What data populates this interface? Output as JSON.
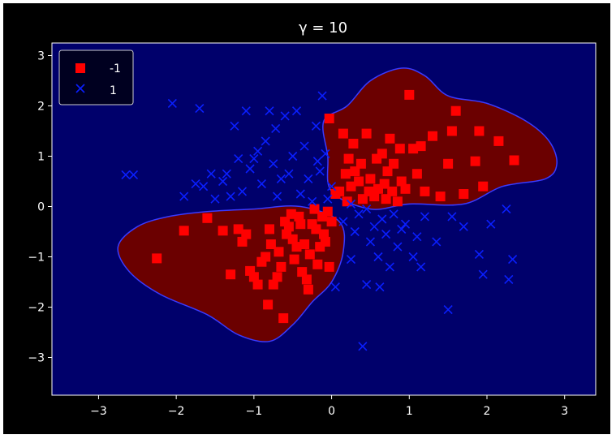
{
  "colors": {
    "background": "#000000",
    "region_positive": "#00006b",
    "region_negative": "#6b0000",
    "boundary": "#3a3aff",
    "class_neg": "#ff0000",
    "class_pos": "#0a1fff",
    "axes": "#ffffff"
  },
  "chart_data": {
    "type": "scatter",
    "title": "γ = 10",
    "xlabel": "",
    "ylabel": "",
    "xlim": [
      -3.6,
      3.4
    ],
    "ylim": [
      -3.75,
      3.25
    ],
    "xticks": [
      -3,
      -2,
      -1,
      0,
      1,
      2,
      3
    ],
    "yticks": [
      -3,
      -2,
      -1,
      0,
      1,
      2,
      3
    ],
    "xtick_labels": [
      "−3",
      "−2",
      "−1",
      "0",
      "1",
      "2",
      "3"
    ],
    "ytick_labels": [
      "−3",
      "−2",
      "−1",
      "0",
      "1",
      "2",
      "3"
    ],
    "grid": false,
    "legend_position": "top-left",
    "decision_regions": {
      "background_class": "1",
      "class_-1_regions": [
        [
          [
            -0.1,
            1.7
          ],
          [
            0.2,
            2.0
          ],
          [
            0.5,
            2.5
          ],
          [
            0.9,
            2.75
          ],
          [
            1.2,
            2.6
          ],
          [
            1.5,
            2.2
          ],
          [
            2.0,
            2.05
          ],
          [
            2.5,
            1.7
          ],
          [
            2.8,
            1.3
          ],
          [
            2.9,
            0.85
          ],
          [
            2.75,
            0.55
          ],
          [
            2.2,
            0.4
          ],
          [
            1.7,
            0.05
          ],
          [
            1.0,
            0.05
          ],
          [
            0.5,
            -0.05
          ],
          [
            0.0,
            0.3
          ],
          [
            -0.05,
            1.0
          ]
        ],
        [
          [
            -2.75,
            -0.8
          ],
          [
            -2.5,
            -0.4
          ],
          [
            -2.1,
            -0.2
          ],
          [
            -1.6,
            -0.1
          ],
          [
            -1.0,
            -0.05
          ],
          [
            -0.4,
            0.0
          ],
          [
            0.1,
            -0.3
          ],
          [
            0.15,
            -0.9
          ],
          [
            0.0,
            -1.5
          ],
          [
            -0.25,
            -1.9
          ],
          [
            -0.5,
            -2.35
          ],
          [
            -0.8,
            -2.68
          ],
          [
            -1.2,
            -2.55
          ],
          [
            -1.6,
            -2.15
          ],
          [
            -2.2,
            -1.75
          ],
          [
            -2.6,
            -1.3
          ]
        ]
      ]
    },
    "series": [
      {
        "name": "-1",
        "marker": "square",
        "points": [
          [
            -2.25,
            -1.03
          ],
          [
            -1.9,
            -0.48
          ],
          [
            -1.6,
            -0.23
          ],
          [
            -1.4,
            -0.48
          ],
          [
            -1.3,
            -1.35
          ],
          [
            -1.2,
            -0.45
          ],
          [
            -1.15,
            -0.7
          ],
          [
            -1.1,
            -0.55
          ],
          [
            -1.05,
            -1.28
          ],
          [
            -1.0,
            -1.4
          ],
          [
            -0.95,
            -1.55
          ],
          [
            -0.9,
            -1.1
          ],
          [
            -0.85,
            -1.0
          ],
          [
            -0.82,
            -1.95
          ],
          [
            -0.8,
            -0.45
          ],
          [
            -0.78,
            -0.75
          ],
          [
            -0.75,
            -1.55
          ],
          [
            -0.7,
            -1.4
          ],
          [
            -0.68,
            -0.9
          ],
          [
            -0.65,
            -1.2
          ],
          [
            -0.62,
            -2.22
          ],
          [
            -0.6,
            -0.3
          ],
          [
            -0.58,
            -0.55
          ],
          [
            -0.55,
            -0.4
          ],
          [
            -0.52,
            -0.15
          ],
          [
            -0.5,
            -0.65
          ],
          [
            -0.48,
            -1.05
          ],
          [
            -0.45,
            -0.8
          ],
          [
            -0.42,
            -0.2
          ],
          [
            -0.4,
            -0.35
          ],
          [
            -0.38,
            -1.3
          ],
          [
            -0.35,
            -0.75
          ],
          [
            -0.32,
            -1.45
          ],
          [
            -0.3,
            -1.65
          ],
          [
            -0.28,
            -0.95
          ],
          [
            -0.25,
            -0.35
          ],
          [
            -0.22,
            -0.05
          ],
          [
            -0.2,
            -0.45
          ],
          [
            -0.18,
            -1.15
          ],
          [
            -0.15,
            -0.8
          ],
          [
            -0.12,
            -0.2
          ],
          [
            -0.1,
            -0.55
          ],
          [
            -0.08,
            -0.7
          ],
          [
            -0.05,
            -0.1
          ],
          [
            -0.03,
            -1.2
          ],
          [
            0.0,
            -0.3
          ],
          [
            0.1,
            0.3
          ],
          [
            0.15,
            1.45
          ],
          [
            0.18,
            0.65
          ],
          [
            0.2,
            0.1
          ],
          [
            0.22,
            0.95
          ],
          [
            0.25,
            0.4
          ],
          [
            0.28,
            1.25
          ],
          [
            0.3,
            0.7
          ],
          [
            0.35,
            0.5
          ],
          [
            0.38,
            0.85
          ],
          [
            0.4,
            0.15
          ],
          [
            0.45,
            1.45
          ],
          [
            0.48,
            0.3
          ],
          [
            0.5,
            0.55
          ],
          [
            0.55,
            0.2
          ],
          [
            0.58,
            0.95
          ],
          [
            0.6,
            0.35
          ],
          [
            0.65,
            1.05
          ],
          [
            0.68,
            0.45
          ],
          [
            0.7,
            0.15
          ],
          [
            0.72,
            0.7
          ],
          [
            0.75,
            1.35
          ],
          [
            0.78,
            0.3
          ],
          [
            0.8,
            0.85
          ],
          [
            0.85,
            0.1
          ],
          [
            0.88,
            1.15
          ],
          [
            0.9,
            0.5
          ],
          [
            0.95,
            0.35
          ],
          [
            1.0,
            2.22
          ],
          [
            1.05,
            1.15
          ],
          [
            1.1,
            0.65
          ],
          [
            1.15,
            1.2
          ],
          [
            1.2,
            0.3
          ],
          [
            1.3,
            1.4
          ],
          [
            1.4,
            0.2
          ],
          [
            1.5,
            0.85
          ],
          [
            1.55,
            1.5
          ],
          [
            1.6,
            1.9
          ],
          [
            1.7,
            0.25
          ],
          [
            1.85,
            0.9
          ],
          [
            1.9,
            1.5
          ],
          [
            1.95,
            0.4
          ],
          [
            2.15,
            1.3
          ],
          [
            2.35,
            0.92
          ],
          [
            -0.03,
            1.75
          ],
          [
            0.05,
            0.25
          ]
        ]
      },
      {
        "name": "1",
        "marker": "x",
        "points": [
          [
            -2.65,
            0.63
          ],
          [
            -2.55,
            0.63
          ],
          [
            -2.05,
            2.05
          ],
          [
            -1.9,
            0.2
          ],
          [
            -1.75,
            0.45
          ],
          [
            -1.7,
            1.95
          ],
          [
            -1.65,
            0.4
          ],
          [
            -1.55,
            0.65
          ],
          [
            -1.5,
            0.15
          ],
          [
            -1.35,
            0.65
          ],
          [
            -1.25,
            1.6
          ],
          [
            -1.2,
            0.95
          ],
          [
            -1.15,
            0.3
          ],
          [
            -1.1,
            1.9
          ],
          [
            -1.05,
            0.75
          ],
          [
            -1.0,
            0.95
          ],
          [
            -0.95,
            1.1
          ],
          [
            -0.9,
            0.45
          ],
          [
            -0.85,
            1.3
          ],
          [
            -0.8,
            1.9
          ],
          [
            -0.75,
            0.85
          ],
          [
            -0.72,
            1.55
          ],
          [
            -0.7,
            0.2
          ],
          [
            -0.65,
            0.55
          ],
          [
            -0.6,
            1.8
          ],
          [
            -0.55,
            0.65
          ],
          [
            -0.5,
            1.0
          ],
          [
            -0.45,
            1.9
          ],
          [
            -0.4,
            0.25
          ],
          [
            -0.35,
            1.2
          ],
          [
            -0.3,
            0.55
          ],
          [
            -0.25,
            0.1
          ],
          [
            -0.2,
            1.6
          ],
          [
            -0.15,
            0.7
          ],
          [
            -0.12,
            2.2
          ],
          [
            -0.08,
            1.05
          ],
          [
            -0.05,
            0.15
          ],
          [
            0.0,
            0.4
          ],
          [
            -0.18,
            0.9
          ],
          [
            -1.3,
            0.2
          ],
          [
            -1.4,
            0.5
          ],
          [
            0.05,
            -1.6
          ],
          [
            0.15,
            -0.3
          ],
          [
            0.25,
            -1.05
          ],
          [
            0.3,
            -0.5
          ],
          [
            0.35,
            -0.15
          ],
          [
            0.4,
            -2.78
          ],
          [
            0.45,
            -1.55
          ],
          [
            0.5,
            -0.7
          ],
          [
            0.55,
            -0.4
          ],
          [
            0.6,
            -1.0
          ],
          [
            0.62,
            -1.6
          ],
          [
            0.65,
            -0.25
          ],
          [
            0.7,
            -0.55
          ],
          [
            0.75,
            -1.2
          ],
          [
            0.8,
            -0.15
          ],
          [
            0.85,
            -0.8
          ],
          [
            0.9,
            -0.45
          ],
          [
            0.95,
            -0.35
          ],
          [
            1.05,
            -1.0
          ],
          [
            1.1,
            -0.6
          ],
          [
            1.15,
            -1.2
          ],
          [
            1.2,
            -0.2
          ],
          [
            1.35,
            -0.7
          ],
          [
            1.5,
            -2.05
          ],
          [
            1.55,
            -0.2
          ],
          [
            1.7,
            -0.4
          ],
          [
            1.9,
            -0.95
          ],
          [
            1.95,
            -1.35
          ],
          [
            2.05,
            -0.35
          ],
          [
            2.25,
            -0.05
          ],
          [
            2.28,
            -1.45
          ],
          [
            2.33,
            -1.05
          ],
          [
            0.25,
            0.05
          ],
          [
            0.45,
            -0.05
          ]
        ]
      }
    ]
  }
}
